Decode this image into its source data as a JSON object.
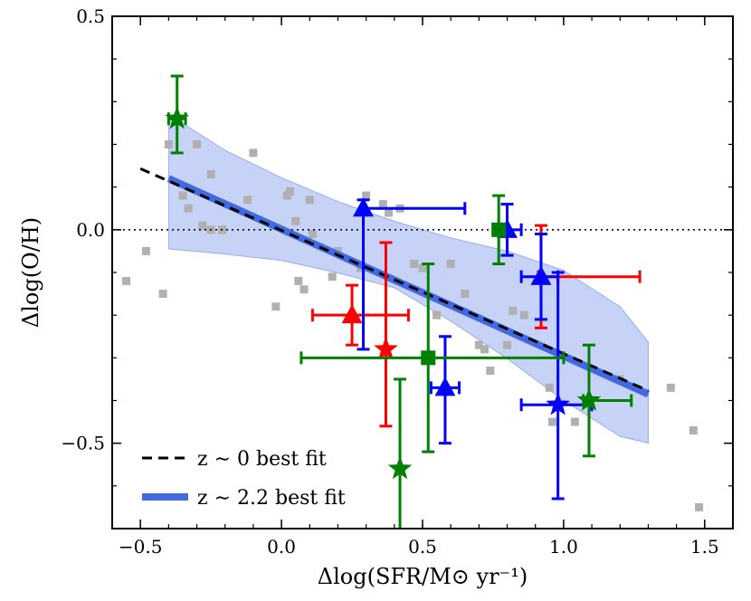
{
  "chart_data": {
    "type": "scatter",
    "title": "",
    "xlabel": "Δlog(SFR/M⊙ yr⁻¹)",
    "ylabel": "Δlog(O/H)",
    "xlim": [
      -0.6,
      1.6
    ],
    "ylim": [
      -0.7,
      0.5
    ],
    "xticks": [
      -0.5,
      0.0,
      0.5,
      1.0,
      1.5
    ],
    "yticks": [
      -0.5,
      0.0,
      0.5
    ],
    "xtick_labels": [
      "−0.5",
      "0.0",
      "0.5",
      "1.0",
      "1.5"
    ],
    "ytick_labels": [
      "−0.5",
      "0.0",
      "0.5"
    ],
    "reference_line_y": 0.0,
    "legend": {
      "location": "lower-left",
      "entries": [
        {
          "label": "z ∼ 0 best fit",
          "style": "dashed",
          "color": "#000000"
        },
        {
          "label": "z ∼ 2.2 best fit",
          "style": "solid-thick",
          "color": "#4169e1"
        }
      ]
    },
    "z0_fit": {
      "x": [
        -0.5,
        1.3
      ],
      "y": [
        0.143,
        -0.377
      ],
      "color": "#000000"
    },
    "z22_fit": {
      "x": [
        -0.4,
        1.3
      ],
      "y": [
        0.12,
        -0.385
      ],
      "color": "#4169e1"
    },
    "confidence_band": {
      "color": "#4169e1",
      "x": [
        -0.4,
        -0.2,
        0.0,
        0.2,
        0.4,
        0.6,
        0.8,
        1.0,
        1.2,
        1.3
      ],
      "upper": [
        0.27,
        0.186,
        0.122,
        0.066,
        0.02,
        -0.019,
        -0.05,
        -0.095,
        -0.18,
        -0.263
      ],
      "lower": [
        -0.045,
        -0.057,
        -0.072,
        -0.101,
        -0.136,
        -0.214,
        -0.302,
        -0.4,
        -0.484,
        -0.5
      ]
    },
    "background_points": {
      "color": "#b0b0b0",
      "marker": "square",
      "points": [
        [
          -0.55,
          -0.12
        ],
        [
          -0.48,
          -0.05
        ],
        [
          -0.42,
          -0.15
        ],
        [
          -0.4,
          0.2
        ],
        [
          -0.35,
          0.08
        ],
        [
          -0.33,
          0.05
        ],
        [
          -0.3,
          0.2
        ],
        [
          -0.28,
          0.01
        ],
        [
          -0.25,
          0.13
        ],
        [
          -0.25,
          0.0
        ],
        [
          -0.21,
          0.0
        ],
        [
          -0.12,
          0.07
        ],
        [
          -0.1,
          0.18
        ],
        [
          -0.02,
          -0.18
        ],
        [
          0.02,
          0.08
        ],
        [
          0.03,
          0.09
        ],
        [
          0.05,
          0.02
        ],
        [
          0.06,
          -0.12
        ],
        [
          0.08,
          -0.14
        ],
        [
          0.1,
          0.07
        ],
        [
          0.11,
          -0.01
        ],
        [
          0.18,
          -0.11
        ],
        [
          0.2,
          -0.05
        ],
        [
          0.28,
          -0.09
        ],
        [
          0.3,
          0.08
        ],
        [
          0.36,
          0.06
        ],
        [
          0.38,
          0.04
        ],
        [
          0.42,
          0.05
        ],
        [
          0.47,
          -0.08
        ],
        [
          0.5,
          -0.09
        ],
        [
          0.55,
          -0.2
        ],
        [
          0.6,
          -0.08
        ],
        [
          0.65,
          -0.15
        ],
        [
          0.7,
          -0.27
        ],
        [
          0.72,
          -0.28
        ],
        [
          0.74,
          -0.33
        ],
        [
          0.8,
          -0.27
        ],
        [
          0.82,
          -0.19
        ],
        [
          0.86,
          -0.2
        ],
        [
          0.95,
          -0.37
        ],
        [
          0.96,
          -0.45
        ],
        [
          1.04,
          -0.45
        ],
        [
          1.2,
          -0.35
        ],
        [
          1.38,
          -0.37
        ],
        [
          1.46,
          -0.47
        ],
        [
          1.48,
          -0.65
        ]
      ]
    },
    "series": [
      {
        "color": "#ff0000",
        "points": [
          {
            "marker": "triangle",
            "x": 0.25,
            "y": -0.2,
            "xerr": [
              0.14,
              0.2
            ],
            "yerr": [
              0.07,
              0.07
            ]
          },
          {
            "marker": "star",
            "x": 0.37,
            "y": -0.28,
            "xerr": [
              0.0,
              0.0
            ],
            "yerr": [
              0.18,
              0.25
            ]
          },
          {
            "marker": "triangle",
            "x": 0.92,
            "y": -0.11,
            "xerr": [
              0.01,
              0.35
            ],
            "yerr": [
              0.12,
              0.12
            ]
          }
        ]
      },
      {
        "color": "#0000ff",
        "points": [
          {
            "marker": "triangle",
            "x": 0.29,
            "y": 0.05,
            "xerr": [
              0.0,
              0.36
            ],
            "yerr": [
              0.33,
              0.02
            ]
          },
          {
            "marker": "triangle",
            "x": 0.58,
            "y": -0.37,
            "xerr": [
              0.05,
              0.05
            ],
            "yerr": [
              0.13,
              0.12
            ]
          },
          {
            "marker": "triangle",
            "x": 0.8,
            "y": 0.0,
            "xerr": [
              0.02,
              0.05
            ],
            "yerr": [
              0.06,
              0.06
            ]
          },
          {
            "marker": "triangle",
            "x": 0.92,
            "y": -0.11,
            "xerr": [
              0.07,
              0.06
            ],
            "yerr": [
              0.1,
              0.1
            ]
          },
          {
            "marker": "star",
            "x": 0.98,
            "y": -0.41,
            "xerr": [
              0.13,
              0.12
            ],
            "yerr": [
              0.22,
              0.31
            ]
          }
        ]
      },
      {
        "color": "#008000",
        "points": [
          {
            "marker": "star",
            "x": -0.37,
            "y": 0.26,
            "xerr": [
              0.03,
              0.03
            ],
            "yerr": [
              0.08,
              0.1
            ]
          },
          {
            "marker": "star",
            "x": 0.42,
            "y": -0.56,
            "xerr": [
              0.0,
              0.0
            ],
            "yerr": [
              0.21,
              0.21
            ]
          },
          {
            "marker": "square",
            "x": 0.52,
            "y": -0.3,
            "xerr": [
              0.45,
              0.48
            ],
            "yerr": [
              0.22,
              0.22
            ]
          },
          {
            "marker": "square",
            "x": 0.77,
            "y": 0.0,
            "xerr": [
              0.01,
              0.01
            ],
            "yerr": [
              0.08,
              0.08
            ]
          },
          {
            "marker": "star",
            "x": 1.09,
            "y": -0.4,
            "xerr": [
              0.02,
              0.15
            ],
            "yerr": [
              0.13,
              0.13
            ]
          }
        ]
      }
    ]
  }
}
